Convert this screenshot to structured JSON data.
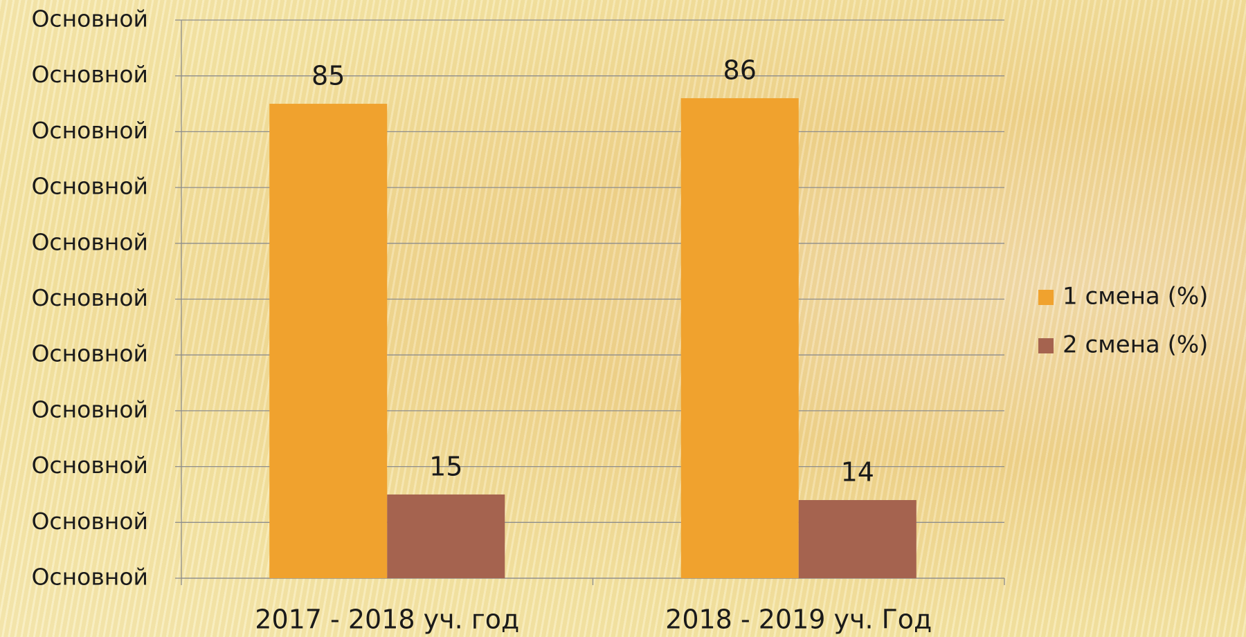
{
  "chart_data": {
    "type": "bar",
    "categories": [
      "2017 - 2018 уч. год",
      "2018 - 2019 уч. Год"
    ],
    "series": [
      {
        "name": "1 смена (%)",
        "color": "#f0a22e",
        "values": [
          85,
          86
        ]
      },
      {
        "name": "2 смена (%)",
        "color": "#a5634f",
        "values": [
          15,
          14
        ]
      }
    ],
    "ylim": [
      0,
      100
    ],
    "yticks": [
      {
        "value": 0,
        "label": "Основной"
      },
      {
        "value": 10,
        "label": "Основной"
      },
      {
        "value": 20,
        "label": "Основной"
      },
      {
        "value": 30,
        "label": "Основной"
      },
      {
        "value": 40,
        "label": "Основной"
      },
      {
        "value": 50,
        "label": "Основной"
      },
      {
        "value": 60,
        "label": "Основной"
      },
      {
        "value": 70,
        "label": "Основной"
      },
      {
        "value": 80,
        "label": "Основной"
      },
      {
        "value": 90,
        "label": "Основной"
      },
      {
        "value": 100,
        "label": "Основной"
      }
    ],
    "grid": true,
    "legend": "right"
  }
}
